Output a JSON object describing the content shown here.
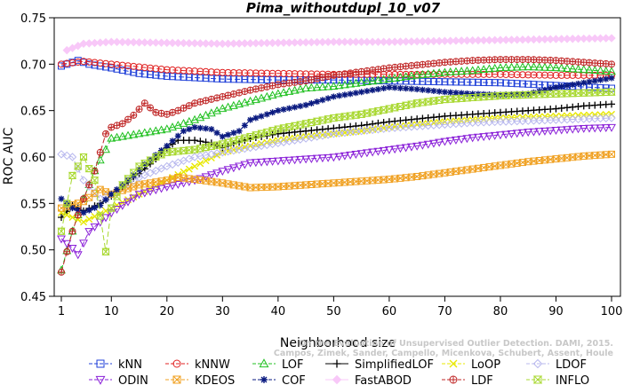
{
  "chart_data": {
    "type": "line",
    "title": "Pima_withoutdupl_10_v07",
    "xlabel": "Neighborhood size",
    "ylabel": "ROC AUC",
    "xlim": [
      1,
      100
    ],
    "ylim": [
      0.45,
      0.75
    ],
    "xticks": [
      "1",
      "10",
      "20",
      "30",
      "40",
      "50",
      "60",
      "70",
      "80",
      "90",
      "100"
    ],
    "yticks": [
      "0.45",
      "0.50",
      "0.55",
      "0.60",
      "0.65",
      "0.70",
      "0.75"
    ],
    "grid": false,
    "legend_position": "bottom",
    "watermark": [
      "Campos, Zimek, Sander, Campello, Micenkova, Schubert, Assent, Houle",
      "On the Evaluation of Unsupervised Outlier Detection. DAMI, 2015."
    ],
    "series": [
      {
        "name": "kNN",
        "color": "#1f3fd8",
        "marker": "square",
        "dash": "6,3",
        "points": [
          [
            1,
            0.698
          ],
          [
            3,
            0.702
          ],
          [
            4,
            0.704
          ],
          [
            6,
            0.7
          ],
          [
            10,
            0.696
          ],
          [
            15,
            0.69
          ],
          [
            20,
            0.687
          ],
          [
            30,
            0.684
          ],
          [
            40,
            0.683
          ],
          [
            50,
            0.683
          ],
          [
            60,
            0.682
          ],
          [
            70,
            0.681
          ],
          [
            80,
            0.68
          ],
          [
            90,
            0.677
          ],
          [
            100,
            0.674
          ]
        ]
      },
      {
        "name": "kNNW",
        "color": "#e02020",
        "marker": "circle",
        "dash": "6,3",
        "points": [
          [
            1,
            0.7
          ],
          [
            5,
            0.703
          ],
          [
            10,
            0.7
          ],
          [
            20,
            0.694
          ],
          [
            30,
            0.691
          ],
          [
            40,
            0.69
          ],
          [
            50,
            0.689
          ],
          [
            60,
            0.689
          ],
          [
            70,
            0.689
          ],
          [
            80,
            0.689
          ],
          [
            90,
            0.688
          ],
          [
            100,
            0.688
          ]
        ]
      },
      {
        "name": "LOF",
        "color": "#20c020",
        "marker": "triangle-up",
        "dash": "6,3",
        "points": [
          [
            1,
            0.478
          ],
          [
            3,
            0.52
          ],
          [
            5,
            0.555
          ],
          [
            7,
            0.585
          ],
          [
            9,
            0.608
          ],
          [
            10,
            0.62
          ],
          [
            12,
            0.622
          ],
          [
            15,
            0.625
          ],
          [
            20,
            0.63
          ],
          [
            25,
            0.64
          ],
          [
            30,
            0.652
          ],
          [
            35,
            0.66
          ],
          [
            40,
            0.668
          ],
          [
            45,
            0.674
          ],
          [
            50,
            0.676
          ],
          [
            55,
            0.68
          ],
          [
            60,
            0.684
          ],
          [
            65,
            0.688
          ],
          [
            70,
            0.691
          ],
          [
            75,
            0.693
          ],
          [
            80,
            0.696
          ],
          [
            85,
            0.697
          ],
          [
            90,
            0.696
          ],
          [
            95,
            0.694
          ],
          [
            100,
            0.692
          ]
        ]
      },
      {
        "name": "SimplifiedLOF",
        "color": "#000000",
        "marker": "plus",
        "dash": "",
        "points": [
          [
            1,
            0.535
          ],
          [
            3,
            0.548
          ],
          [
            5,
            0.542
          ],
          [
            8,
            0.55
          ],
          [
            10,
            0.558
          ],
          [
            12,
            0.568
          ],
          [
            15,
            0.582
          ],
          [
            18,
            0.598
          ],
          [
            20,
            0.61
          ],
          [
            22,
            0.618
          ],
          [
            25,
            0.618
          ],
          [
            28,
            0.615
          ],
          [
            30,
            0.61
          ],
          [
            32,
            0.614
          ],
          [
            35,
            0.62
          ],
          [
            40,
            0.625
          ],
          [
            45,
            0.628
          ],
          [
            50,
            0.631
          ],
          [
            55,
            0.634
          ],
          [
            60,
            0.638
          ],
          [
            65,
            0.641
          ],
          [
            70,
            0.644
          ],
          [
            75,
            0.646
          ],
          [
            80,
            0.648
          ],
          [
            85,
            0.65
          ],
          [
            90,
            0.652
          ],
          [
            95,
            0.655
          ],
          [
            100,
            0.657
          ]
        ]
      },
      {
        "name": "LoOP",
        "color": "#e8e800",
        "marker": "x",
        "dash": "6,3",
        "points": [
          [
            1,
            0.54
          ],
          [
            5,
            0.53
          ],
          [
            10,
            0.545
          ],
          [
            15,
            0.56
          ],
          [
            20,
            0.575
          ],
          [
            25,
            0.59
          ],
          [
            30,
            0.605
          ],
          [
            35,
            0.612
          ],
          [
            40,
            0.618
          ],
          [
            45,
            0.622
          ],
          [
            50,
            0.625
          ],
          [
            55,
            0.628
          ],
          [
            60,
            0.632
          ],
          [
            65,
            0.635
          ],
          [
            70,
            0.638
          ],
          [
            75,
            0.64
          ],
          [
            80,
            0.642
          ],
          [
            85,
            0.643
          ],
          [
            90,
            0.644
          ],
          [
            95,
            0.645
          ],
          [
            100,
            0.646
          ]
        ]
      },
      {
        "name": "LDOF",
        "color": "#b8b8ee",
        "marker": "diamond",
        "dash": "6,3",
        "points": [
          [
            1,
            0.603
          ],
          [
            3,
            0.6
          ],
          [
            5,
            0.575
          ],
          [
            8,
            0.555
          ],
          [
            10,
            0.56
          ],
          [
            15,
            0.578
          ],
          [
            20,
            0.59
          ],
          [
            25,
            0.6
          ],
          [
            30,
            0.605
          ],
          [
            35,
            0.61
          ],
          [
            40,
            0.615
          ],
          [
            45,
            0.62
          ],
          [
            50,
            0.625
          ],
          [
            55,
            0.628
          ],
          [
            60,
            0.631
          ],
          [
            65,
            0.633
          ],
          [
            70,
            0.635
          ],
          [
            75,
            0.637
          ],
          [
            80,
            0.638
          ],
          [
            85,
            0.639
          ],
          [
            90,
            0.64
          ],
          [
            95,
            0.641
          ],
          [
            100,
            0.642
          ]
        ]
      },
      {
        "name": "ODIN",
        "color": "#8a20d8",
        "marker": "triangle-down",
        "dash": "6,3",
        "points": [
          [
            1,
            0.512
          ],
          [
            3,
            0.502
          ],
          [
            4,
            0.495
          ],
          [
            6,
            0.52
          ],
          [
            8,
            0.53
          ],
          [
            10,
            0.54
          ],
          [
            15,
            0.56
          ],
          [
            20,
            0.568
          ],
          [
            25,
            0.575
          ],
          [
            30,
            0.585
          ],
          [
            35,
            0.594
          ],
          [
            40,
            0.596
          ],
          [
            45,
            0.598
          ],
          [
            50,
            0.6
          ],
          [
            55,
            0.604
          ],
          [
            60,
            0.608
          ],
          [
            65,
            0.612
          ],
          [
            70,
            0.617
          ],
          [
            75,
            0.621
          ],
          [
            80,
            0.624
          ],
          [
            85,
            0.627
          ],
          [
            90,
            0.629
          ],
          [
            95,
            0.631
          ],
          [
            100,
            0.632
          ]
        ]
      },
      {
        "name": "KDEOS",
        "color": "#f0a020",
        "marker": "square-x",
        "dash": "6,3",
        "points": [
          [
            1,
            0.545
          ],
          [
            5,
            0.552
          ],
          [
            8,
            0.565
          ],
          [
            10,
            0.56
          ],
          [
            15,
            0.57
          ],
          [
            20,
            0.575
          ],
          [
            22,
            0.578
          ],
          [
            25,
            0.576
          ],
          [
            30,
            0.572
          ],
          [
            35,
            0.567
          ],
          [
            40,
            0.568
          ],
          [
            45,
            0.57
          ],
          [
            50,
            0.572
          ],
          [
            55,
            0.574
          ],
          [
            60,
            0.576
          ],
          [
            65,
            0.579
          ],
          [
            70,
            0.583
          ],
          [
            75,
            0.587
          ],
          [
            80,
            0.591
          ],
          [
            85,
            0.595
          ],
          [
            90,
            0.598
          ],
          [
            95,
            0.601
          ],
          [
            100,
            0.603
          ]
        ]
      },
      {
        "name": "COF",
        "color": "#0a1a80",
        "marker": "asterisk",
        "dash": "6,3",
        "points": [
          [
            1,
            0.555
          ],
          [
            3,
            0.545
          ],
          [
            5,
            0.54
          ],
          [
            8,
            0.548
          ],
          [
            10,
            0.56
          ],
          [
            13,
            0.575
          ],
          [
            16,
            0.592
          ],
          [
            20,
            0.612
          ],
          [
            23,
            0.628
          ],
          [
            25,
            0.632
          ],
          [
            28,
            0.63
          ],
          [
            30,
            0.622
          ],
          [
            33,
            0.628
          ],
          [
            35,
            0.64
          ],
          [
            40,
            0.65
          ],
          [
            45,
            0.656
          ],
          [
            50,
            0.665
          ],
          [
            55,
            0.67
          ],
          [
            60,
            0.675
          ],
          [
            65,
            0.673
          ],
          [
            70,
            0.67
          ],
          [
            75,
            0.668
          ],
          [
            80,
            0.667
          ],
          [
            85,
            0.668
          ],
          [
            90,
            0.675
          ],
          [
            95,
            0.68
          ],
          [
            100,
            0.685
          ]
        ]
      },
      {
        "name": "FastABOD",
        "color": "#f8c8f8",
        "marker": "diamond-filled",
        "dash": "",
        "points": [
          [
            2,
            0.715
          ],
          [
            5,
            0.722
          ],
          [
            10,
            0.724
          ],
          [
            20,
            0.723
          ],
          [
            30,
            0.722
          ],
          [
            40,
            0.723
          ],
          [
            50,
            0.724
          ],
          [
            60,
            0.724
          ],
          [
            70,
            0.725
          ],
          [
            80,
            0.726
          ],
          [
            90,
            0.727
          ],
          [
            100,
            0.728
          ]
        ]
      },
      {
        "name": "LDF",
        "color": "#c02828",
        "marker": "circle-plus",
        "dash": "6,3",
        "points": [
          [
            1,
            0.476
          ],
          [
            3,
            0.52
          ],
          [
            5,
            0.555
          ],
          [
            7,
            0.585
          ],
          [
            9,
            0.625
          ],
          [
            10,
            0.632
          ],
          [
            12,
            0.636
          ],
          [
            14,
            0.645
          ],
          [
            16,
            0.658
          ],
          [
            18,
            0.648
          ],
          [
            20,
            0.646
          ],
          [
            22,
            0.65
          ],
          [
            25,
            0.658
          ],
          [
            30,
            0.665
          ],
          [
            35,
            0.672
          ],
          [
            40,
            0.678
          ],
          [
            45,
            0.682
          ],
          [
            50,
            0.688
          ],
          [
            55,
            0.692
          ],
          [
            60,
            0.696
          ],
          [
            65,
            0.699
          ],
          [
            70,
            0.702
          ],
          [
            75,
            0.704
          ],
          [
            80,
            0.705
          ],
          [
            85,
            0.705
          ],
          [
            90,
            0.704
          ],
          [
            95,
            0.702
          ],
          [
            100,
            0.7
          ]
        ]
      },
      {
        "name": "INFLO",
        "color": "#a8d830",
        "marker": "hourglass",
        "dash": "6,3",
        "points": [
          [
            1,
            0.52
          ],
          [
            3,
            0.58
          ],
          [
            5,
            0.6
          ],
          [
            7,
            0.575
          ],
          [
            9,
            0.498
          ],
          [
            10,
            0.545
          ],
          [
            12,
            0.57
          ],
          [
            15,
            0.59
          ],
          [
            18,
            0.6
          ],
          [
            20,
            0.605
          ],
          [
            25,
            0.608
          ],
          [
            30,
            0.614
          ],
          [
            35,
            0.622
          ],
          [
            40,
            0.63
          ],
          [
            45,
            0.636
          ],
          [
            50,
            0.642
          ],
          [
            55,
            0.646
          ],
          [
            60,
            0.652
          ],
          [
            65,
            0.658
          ],
          [
            70,
            0.662
          ],
          [
            75,
            0.664
          ],
          [
            80,
            0.666
          ],
          [
            85,
            0.667
          ],
          [
            90,
            0.668
          ],
          [
            95,
            0.669
          ],
          [
            100,
            0.67
          ]
        ]
      }
    ]
  }
}
